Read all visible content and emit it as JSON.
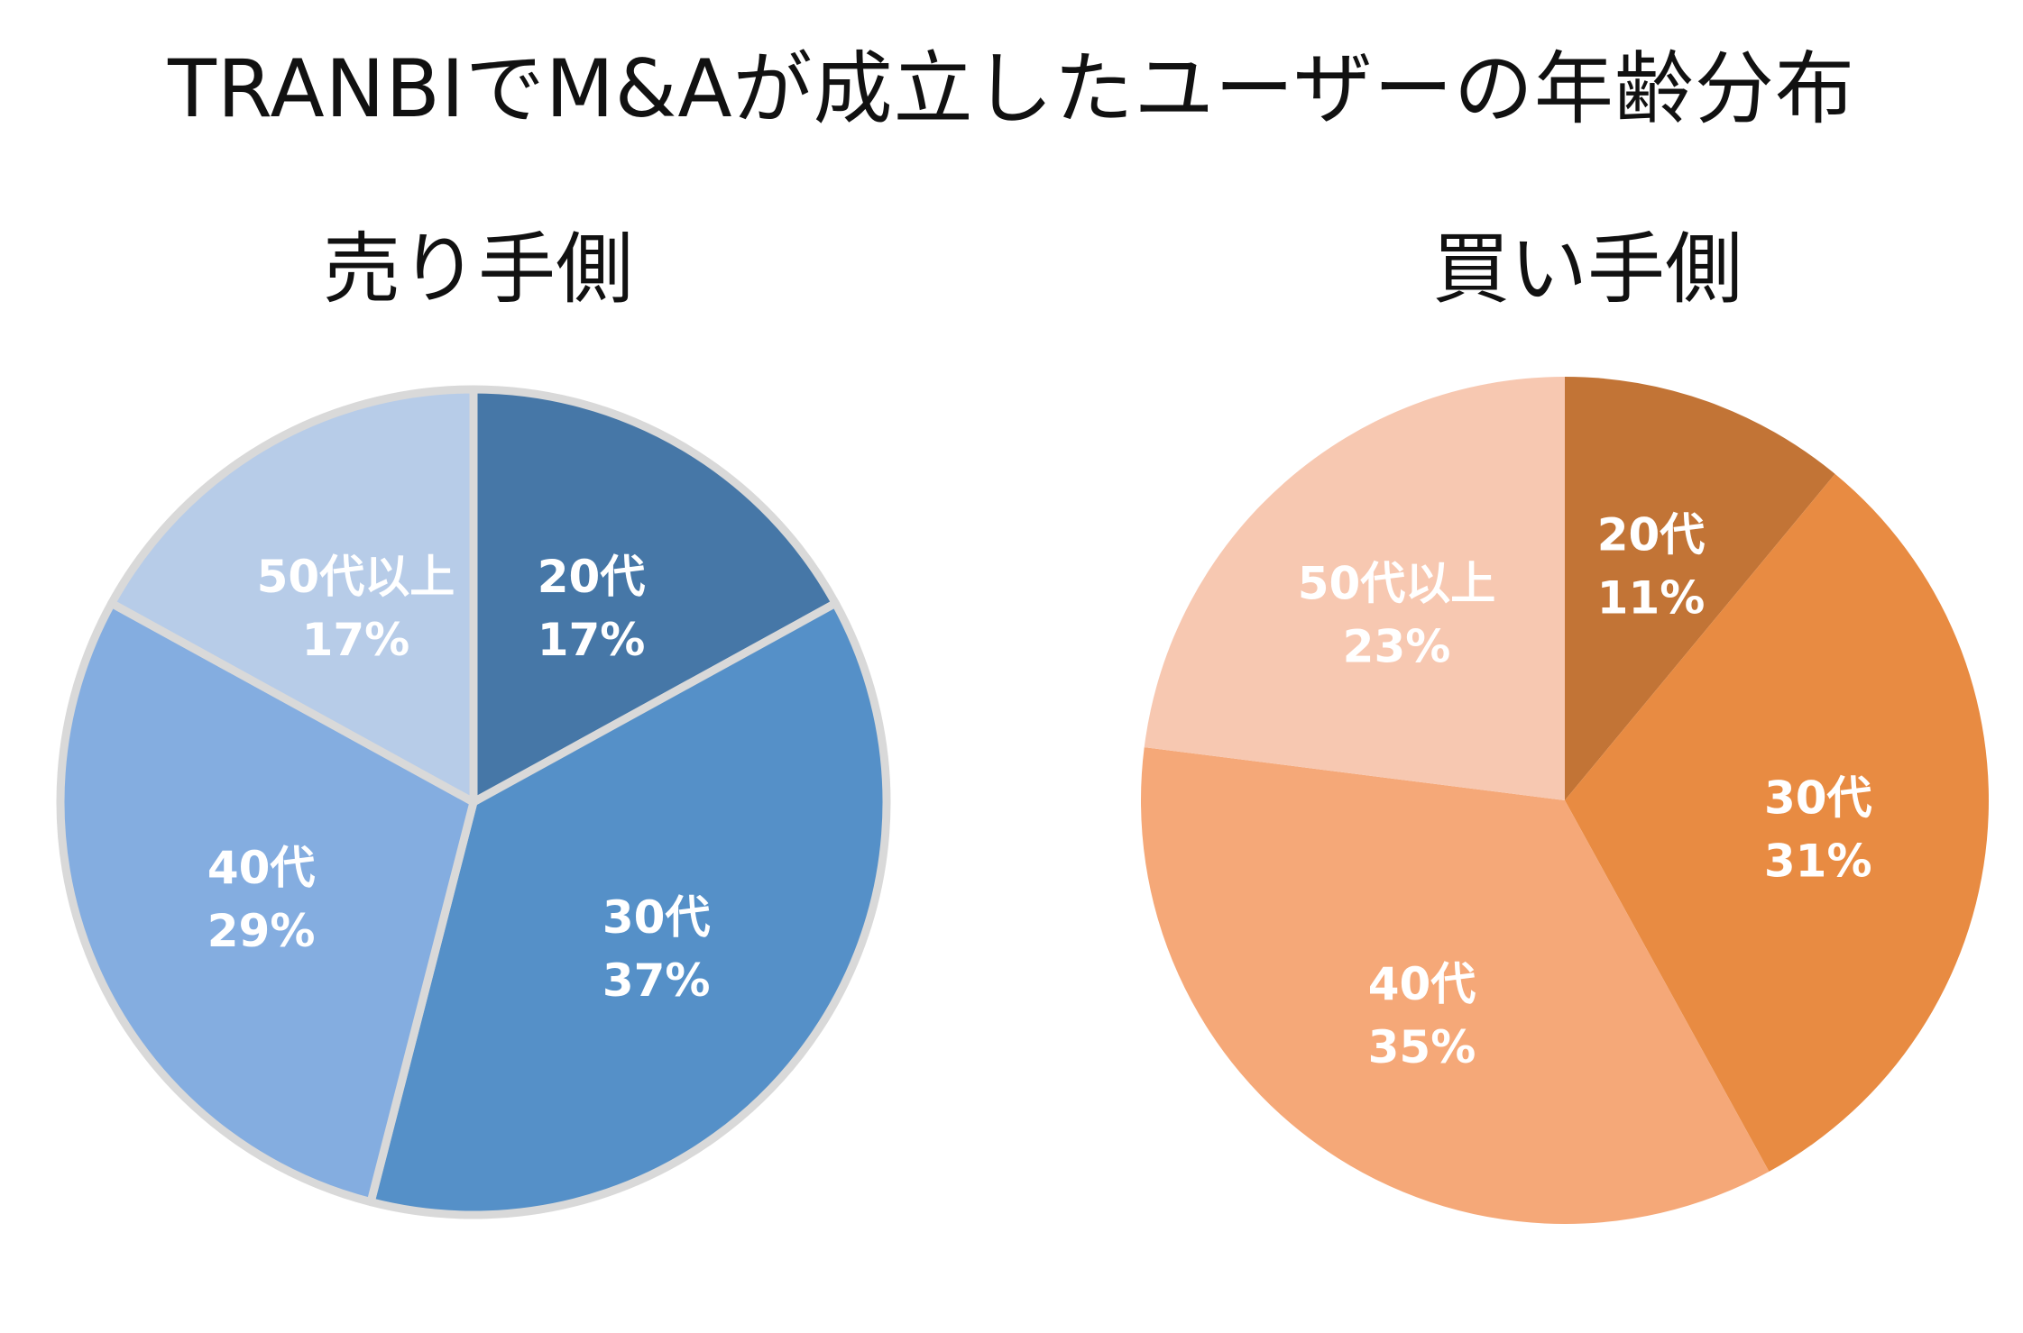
{
  "title": "TRANBIでM&Aが成立したユーザーの年齢分布",
  "chart_data": [
    {
      "type": "pie",
      "title": "売り手側",
      "categories": [
        "20代",
        "30代",
        "40代",
        "50代以上"
      ],
      "values": [
        17,
        37,
        29,
        17
      ],
      "labels": [
        "17%",
        "37%",
        "29%",
        "17%"
      ],
      "colors": [
        "#4677a7",
        "#5590c8",
        "#84ade0",
        "#b7cce8"
      ],
      "label_colors": [
        "#ffffff",
        "#ffffff",
        "#ffffff",
        "#f4f6fa"
      ],
      "separator_color": "#d9d9d9",
      "start_angle_deg": 0,
      "direction": "clockwise"
    },
    {
      "type": "pie",
      "title": "買い手側",
      "categories": [
        "20代",
        "30代",
        "40代",
        "50代以上"
      ],
      "values": [
        11,
        31,
        35,
        23
      ],
      "labels": [
        "11%",
        "31%",
        "35%",
        "23%"
      ],
      "colors": [
        "#c27436",
        "#e88b42",
        "#f5a878",
        "#f7c8b1"
      ],
      "label_colors": [
        "#ffffff",
        "#ffffff",
        "#ffffff",
        "#ffffff"
      ],
      "separator_color": "none",
      "start_angle_deg": 0,
      "direction": "clockwise"
    }
  ]
}
